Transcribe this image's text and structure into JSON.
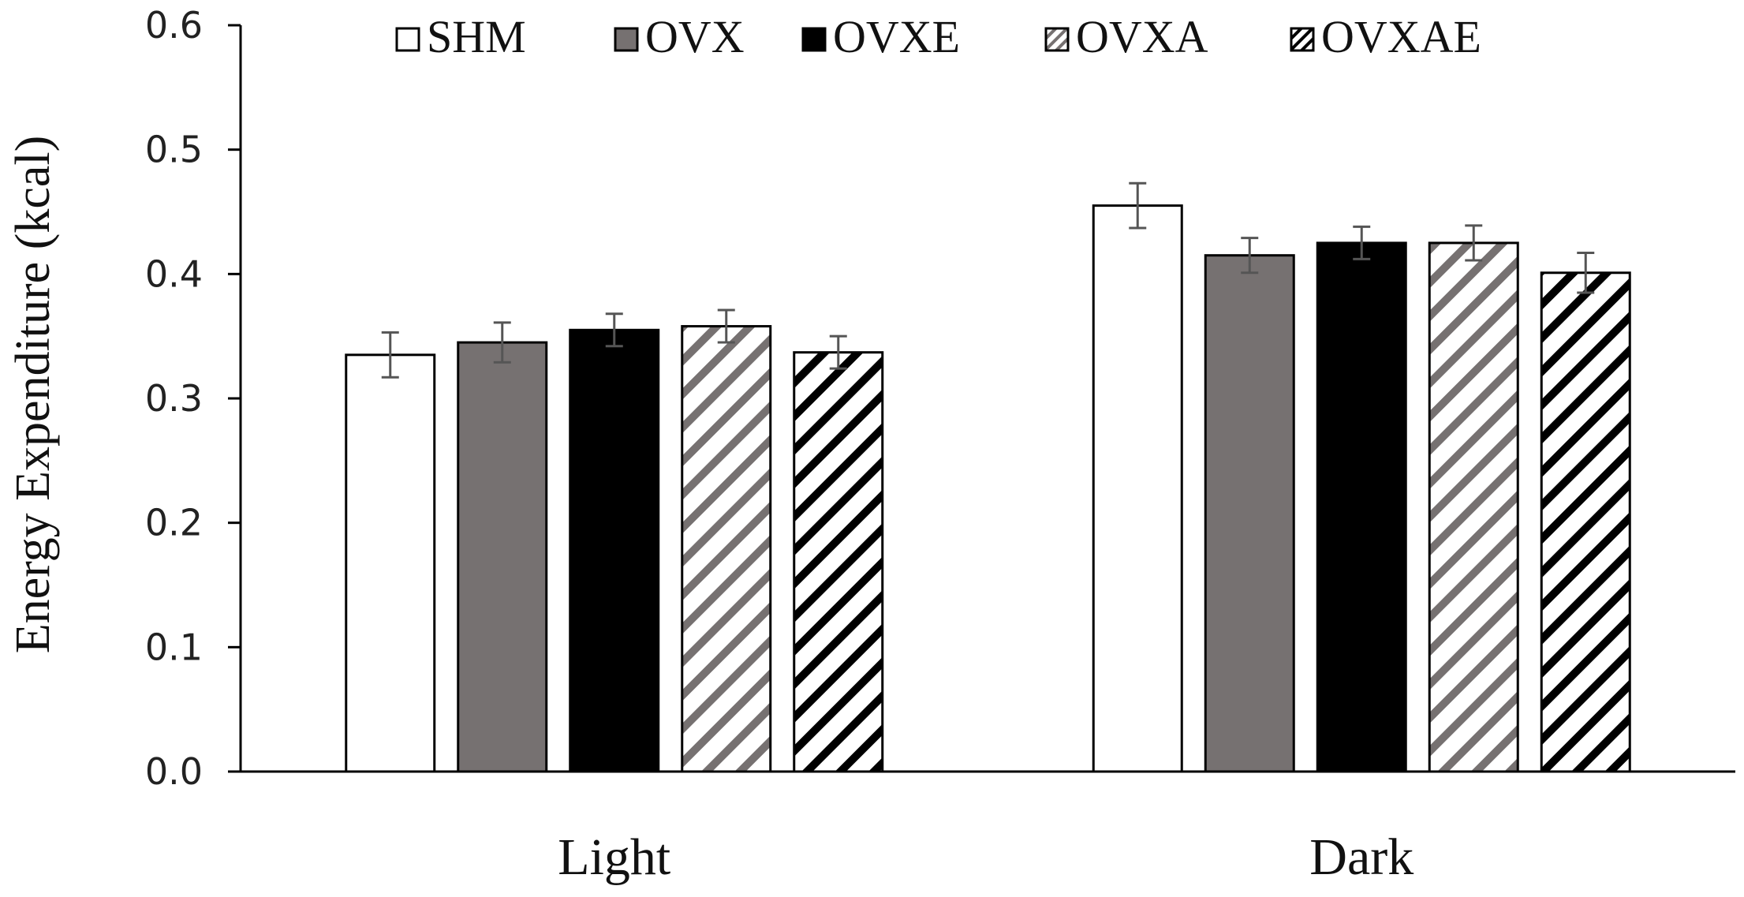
{
  "chart_data": {
    "type": "bar",
    "title": "",
    "xlabel": "",
    "ylabel": "Energy Expenditure (kcal)",
    "categories": [
      "Light",
      "Dark"
    ],
    "ylim": [
      0,
      0.6
    ],
    "yticks": [
      "0.0",
      "0.1",
      "0.2",
      "0.3",
      "0.4",
      "0.5",
      "0.6"
    ],
    "legend_position": "top",
    "grid": false,
    "series": [
      {
        "name": "SHM",
        "values": [
          0.335,
          0.455
        ],
        "errors": [
          0.018,
          0.018
        ],
        "pattern": "solid",
        "color": "#ffffff"
      },
      {
        "name": "OVX",
        "values": [
          0.345,
          0.415
        ],
        "errors": [
          0.016,
          0.014
        ],
        "pattern": "solid",
        "color": "#767171"
      },
      {
        "name": "OVXE",
        "values": [
          0.355,
          0.425
        ],
        "errors": [
          0.013,
          0.013
        ],
        "pattern": "solid",
        "color": "#000000"
      },
      {
        "name": "OVXA",
        "values": [
          0.358,
          0.425
        ],
        "errors": [
          0.013,
          0.014
        ],
        "pattern": "hatch",
        "color": "#767171"
      },
      {
        "name": "OVXAE",
        "values": [
          0.337,
          0.401
        ],
        "errors": [
          0.013,
          0.016
        ],
        "pattern": "hatch",
        "color": "#000000"
      }
    ]
  }
}
